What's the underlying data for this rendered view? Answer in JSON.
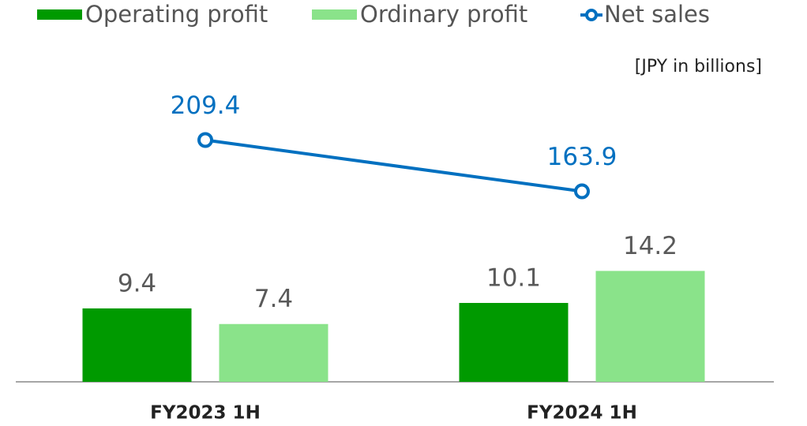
{
  "chart_data": {
    "type": "bar",
    "unit_label": "[JPY in billions]",
    "categories": [
      "FY2023 1H",
      "FY2024 1H"
    ],
    "series": [
      {
        "name": "Operating profit",
        "color": "#009a00",
        "values": [
          9.4,
          10.1
        ]
      },
      {
        "name": "Ordinary profit",
        "color": "#8ae38a",
        "values": [
          7.4,
          14.2
        ]
      },
      {
        "name": "Net sales",
        "type": "line",
        "axis": "y2",
        "color": "#0070c0",
        "values": [
          209.4,
          163.9
        ]
      }
    ],
    "ylim": [
      0,
      40
    ],
    "y2lim": [
      -5,
      272
    ],
    "legend": "top"
  }
}
